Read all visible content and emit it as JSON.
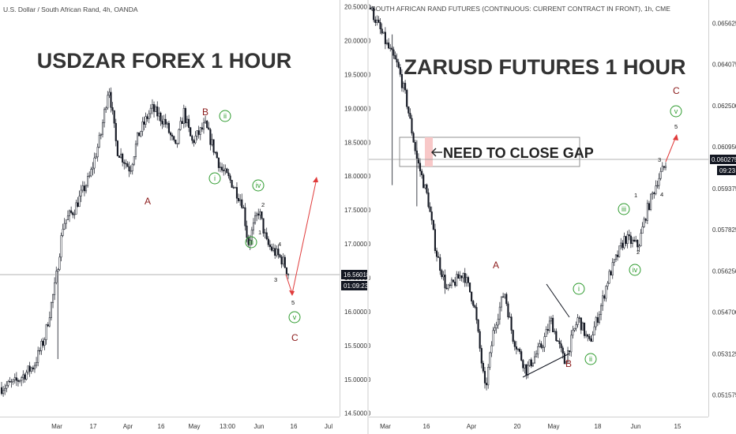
{
  "colors": {
    "candle": "#131722",
    "wave_red": "#8b1a1a",
    "wave_green": "#2e9b2e",
    "projection": "#e03b3b",
    "gap_fill": "#f8c8c8",
    "price_tag": "#131722"
  },
  "left": {
    "header": "U.S. Dollar / South African Rand, 4h, OANDA",
    "title": "USDZAR FOREX 1 HOUR",
    "price_tag": "16.56018",
    "countdown": "01:09:23",
    "x_ticks": [
      "Mar",
      "17",
      "Apr",
      "16",
      "May",
      "13:00",
      "Jun",
      "16",
      "Jul"
    ],
    "wave_labels": {
      "A": "A",
      "B": "B",
      "C": "C",
      "g1": "i",
      "g2": "ii",
      "g3": "iii",
      "g4": "iv",
      "g5": "v",
      "n1": "1",
      "n2": "2",
      "n3": "3",
      "n4": "4",
      "n5": "5"
    }
  },
  "right": {
    "header": "SOUTH AFRICAN RAND FUTURES (CONTINUOUS: CURRENT CONTRACT IN FRONT), 1h, CME",
    "title": "ZARUSD FUTURES 1 HOUR",
    "annotation": "NEED TO CLOSE GAP",
    "price_tag": "0.060275",
    "countdown": "09:23",
    "x_ticks": [
      "Mar",
      "16",
      "Apr",
      "20",
      "May",
      "18",
      "Jun",
      "15"
    ],
    "wave_labels": {
      "A": "A",
      "B": "B",
      "C": "C",
      "g1": "i",
      "g2": "ii",
      "g3": "iii",
      "g4": "iv",
      "g5": "v",
      "n1": "1",
      "n2": "2",
      "n3": "3",
      "n4": "4",
      "n5": "5"
    }
  },
  "chart_data": [
    {
      "type": "candlestick",
      "title": "USDZAR FOREX 1 HOUR",
      "y_ticks": [
        "20.50000",
        "20.00000",
        "19.50000",
        "19.00000",
        "18.50000",
        "18.00000",
        "17.50000",
        "17.00000",
        "16.50000",
        "16.00000",
        "15.50000",
        "15.00000",
        "14.50000"
      ],
      "ylim": [
        14.45,
        20.6
      ],
      "last_price": 16.56018,
      "close_path": [
        {
          "x": "Feb 25",
          "y": 14.88
        },
        {
          "x": "Mar 2",
          "y": 14.95
        },
        {
          "x": "Mar 9",
          "y": 15.2
        },
        {
          "x": "Mar 13",
          "y": 15.6
        },
        {
          "x": "Mar 17",
          "y": 16.4
        },
        {
          "x": "Mar 20",
          "y": 17.3
        },
        {
          "x": "Mar 24",
          "y": 17.5
        },
        {
          "x": "Mar 30",
          "y": 18.0
        },
        {
          "x": "Apr 3",
          "y": 18.6
        },
        {
          "x": "Apr 6",
          "y": 19.35
        },
        {
          "x": "Apr 9",
          "y": 18.4
        },
        {
          "x": "Apr 14",
          "y": 18.1
        },
        {
          "x": "Apr 17",
          "y": 18.6
        },
        {
          "x": "Apr 22",
          "y": 19.0
        },
        {
          "x": "Apr 27",
          "y": 18.8
        },
        {
          "x": "May 1",
          "y": 18.4
        },
        {
          "x": "May 4",
          "y": 18.95
        },
        {
          "x": "May 7",
          "y": 18.5
        },
        {
          "x": "May 12",
          "y": 18.75
        },
        {
          "x": "May 18",
          "y": 18.1
        },
        {
          "x": "May 22",
          "y": 17.9
        },
        {
          "x": "May 26",
          "y": 17.6
        },
        {
          "x": "May 28",
          "y": 17.0
        },
        {
          "x": "Jun 1",
          "y": 17.5
        },
        {
          "x": "Jun 4",
          "y": 17.0
        },
        {
          "x": "Jun 10",
          "y": 16.75
        },
        {
          "x": "Jun 12",
          "y": 16.56
        }
      ],
      "projection": [
        {
          "x": "Jun 12",
          "y": 16.56
        },
        {
          "x": "Jun 15",
          "y": 16.2
        },
        {
          "x": "Jun 25",
          "y": 18.0
        }
      ],
      "waves": [
        {
          "label": "A",
          "y": 17.9
        },
        {
          "label": "B",
          "y": 19.1
        },
        {
          "label": "C",
          "y": 15.6
        },
        {
          "label": "i",
          "y": 18.0
        },
        {
          "label": "ii",
          "y": 18.95
        },
        {
          "label": "iii",
          "y": 16.95
        },
        {
          "label": "iv",
          "y": 17.9
        },
        {
          "label": "v",
          "y": 16.1
        }
      ]
    },
    {
      "type": "candlestick",
      "title": "ZARUSD FUTURES 1 HOUR",
      "y_ticks": [
        "0.065625",
        "0.064075",
        "0.062500",
        "0.060950",
        "0.059375",
        "0.057825",
        "0.056250",
        "0.054700",
        "0.053125",
        "0.051575"
      ],
      "ylim": [
        0.05075,
        0.0665
      ],
      "last_price": 0.060275,
      "close_path": [
        {
          "x": "Feb 24",
          "y": 0.0662
        },
        {
          "x": "Mar 2",
          "y": 0.0648
        },
        {
          "x": "Mar 6",
          "y": 0.064
        },
        {
          "x": "Mar 9",
          "y": 0.0628
        },
        {
          "x": "Mar 13",
          "y": 0.0605
        },
        {
          "x": "Mar 17",
          "y": 0.059
        },
        {
          "x": "Mar 20",
          "y": 0.057
        },
        {
          "x": "Mar 24",
          "y": 0.0555
        },
        {
          "x": "Mar 30",
          "y": 0.0562
        },
        {
          "x": "Apr 3",
          "y": 0.055
        },
        {
          "x": "Apr 7",
          "y": 0.0517
        },
        {
          "x": "Apr 10",
          "y": 0.054
        },
        {
          "x": "Apr 14",
          "y": 0.0555
        },
        {
          "x": "Apr 17",
          "y": 0.0538
        },
        {
          "x": "Apr 22",
          "y": 0.0525
        },
        {
          "x": "Apr 28",
          "y": 0.0535
        },
        {
          "x": "May 1",
          "y": 0.0544
        },
        {
          "x": "May 6",
          "y": 0.0528
        },
        {
          "x": "May 11",
          "y": 0.0545
        },
        {
          "x": "May 15",
          "y": 0.0535
        },
        {
          "x": "May 19",
          "y": 0.0548
        },
        {
          "x": "May 22",
          "y": 0.056
        },
        {
          "x": "May 28",
          "y": 0.0575
        },
        {
          "x": "Jun 2",
          "y": 0.0572
        },
        {
          "x": "Jun 5",
          "y": 0.0585
        },
        {
          "x": "Jun 9",
          "y": 0.0597
        },
        {
          "x": "Jun 12",
          "y": 0.060275
        }
      ],
      "projection": [
        {
          "x": "Jun 12",
          "y": 0.060275
        },
        {
          "x": "Jun 15",
          "y": 0.0612
        }
      ],
      "waves": [
        {
          "label": "A",
          "y": 0.056
        },
        {
          "label": "B",
          "y": 0.052
        },
        {
          "label": "C",
          "y": 0.063
        },
        {
          "label": "i",
          "y": 0.0551
        },
        {
          "label": "ii",
          "y": 0.0522
        },
        {
          "label": "iii",
          "y": 0.0582
        },
        {
          "label": "iv",
          "y": 0.0565
        },
        {
          "label": "v",
          "y": 0.062
        }
      ]
    }
  ]
}
